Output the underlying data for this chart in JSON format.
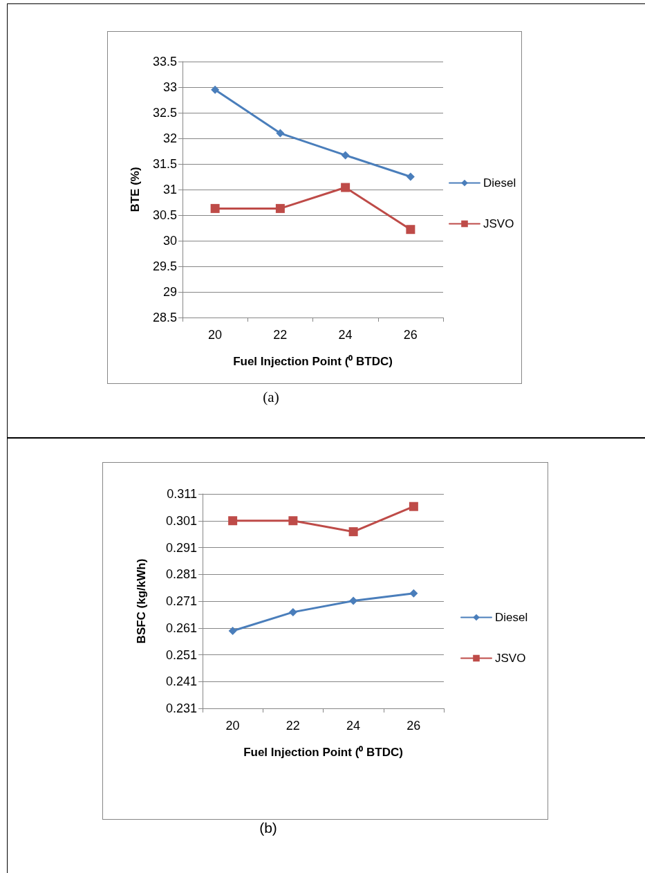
{
  "chart_data": [
    {
      "type": "line",
      "categories": [
        "20",
        "22",
        "24",
        "26"
      ],
      "xlabel": "Fuel Injection Point (⁰ BTDC)",
      "ylabel": "BTE (%)",
      "ylim": [
        28.5,
        33.5
      ],
      "yticks": [
        28.5,
        29,
        29.5,
        30,
        30.5,
        31,
        31.5,
        32,
        32.5,
        33,
        33.5
      ],
      "grid": "y",
      "legend": "right",
      "series": [
        {
          "name": "Diesel",
          "color": "#4a7ebb",
          "marker": "diamond",
          "values": [
            32.95,
            32.1,
            31.67,
            31.25
          ]
        },
        {
          "name": "JSVO",
          "color": "#be4b48",
          "marker": "square",
          "values": [
            30.63,
            30.63,
            31.04,
            30.22
          ]
        }
      ],
      "annotations": [
        "(a)"
      ]
    },
    {
      "type": "line",
      "categories": [
        "20",
        "22",
        "24",
        "26"
      ],
      "xlabel": "Fuel Injection Point (⁰ BTDC)",
      "ylabel": "BSFC (kg/kWh)",
      "ylim": [
        0.231,
        0.311
      ],
      "yticks": [
        0.231,
        0.241,
        0.251,
        0.261,
        0.271,
        0.281,
        0.291,
        0.301,
        0.311
      ],
      "grid": "y",
      "legend": "right",
      "series": [
        {
          "name": "Diesel",
          "color": "#4a7ebb",
          "marker": "diamond",
          "values": [
            0.2599,
            0.2669,
            0.2711,
            0.2739
          ]
        },
        {
          "name": "JSVO",
          "color": "#be4b48",
          "marker": "square",
          "values": [
            0.301,
            0.301,
            0.2969,
            0.3063
          ]
        }
      ],
      "annotations": [
        "(b)"
      ]
    }
  ]
}
